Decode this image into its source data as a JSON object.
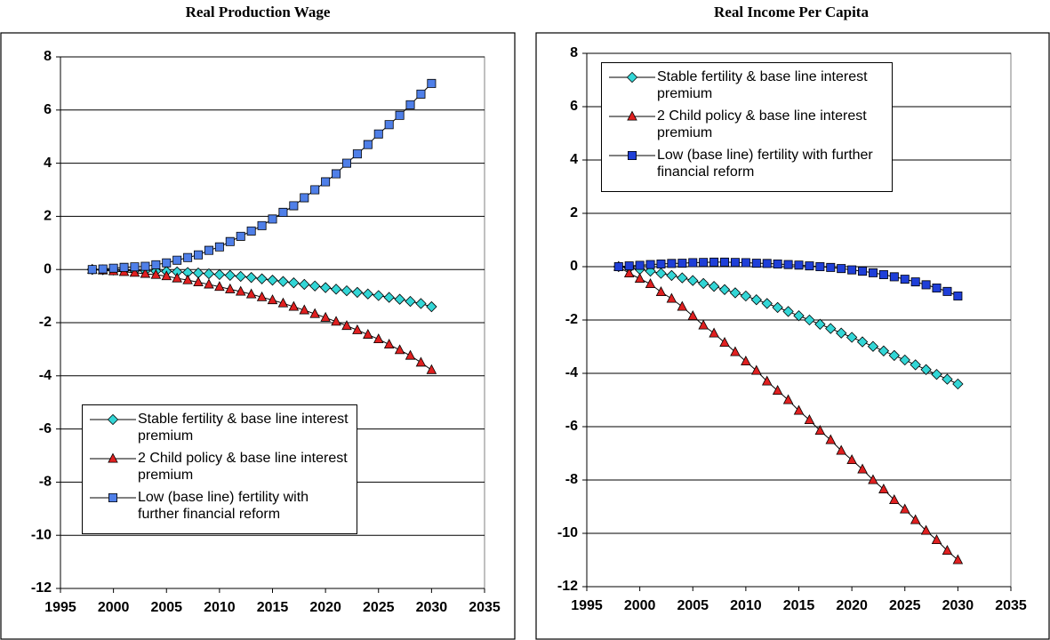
{
  "chart_data": [
    {
      "type": "line",
      "title": "Real Production Wage",
      "x": [
        1998,
        1999,
        2000,
        2001,
        2002,
        2003,
        2004,
        2005,
        2006,
        2007,
        2008,
        2009,
        2010,
        2011,
        2012,
        2013,
        2014,
        2015,
        2016,
        2017,
        2018,
        2019,
        2020,
        2021,
        2022,
        2023,
        2024,
        2025,
        2026,
        2027,
        2028,
        2029,
        2030
      ],
      "xlim": [
        1995,
        2035
      ],
      "xticks": [
        1995,
        2000,
        2005,
        2010,
        2015,
        2020,
        2025,
        2030,
        2035
      ],
      "ylim": [
        -12,
        8
      ],
      "yticks": [
        -12,
        -10,
        -8,
        -6,
        -4,
        -2,
        0,
        2,
        4,
        6,
        8
      ],
      "grid": true,
      "legend": "lower left",
      "series": [
        {
          "name": "Stable fertility & base line interest premium",
          "color": "#33D6D6",
          "marker": "diamond",
          "values": [
            0,
            -0.01,
            -0.02,
            -0.03,
            -0.04,
            -0.05,
            -0.06,
            -0.07,
            -0.09,
            -0.11,
            -0.13,
            -0.16,
            -0.19,
            -0.22,
            -0.26,
            -0.3,
            -0.35,
            -0.4,
            -0.45,
            -0.5,
            -0.56,
            -0.62,
            -0.68,
            -0.74,
            -0.8,
            -0.86,
            -0.92,
            -0.98,
            -1.05,
            -1.12,
            -1.2,
            -1.28,
            -1.4
          ]
        },
        {
          "name": "2 Child policy & base line interest premium",
          "color": "#E02020",
          "marker": "triangle",
          "values": [
            0,
            -0.03,
            -0.06,
            -0.09,
            -0.12,
            -0.16,
            -0.2,
            -0.25,
            -0.33,
            -0.4,
            -0.48,
            -0.56,
            -0.65,
            -0.74,
            -0.83,
            -0.93,
            -1.04,
            -1.15,
            -1.27,
            -1.4,
            -1.53,
            -1.67,
            -1.81,
            -1.96,
            -2.12,
            -2.28,
            -2.45,
            -2.62,
            -2.82,
            -3.03,
            -3.24,
            -3.5,
            -3.78
          ]
        },
        {
          "name": "Low  (base line) fertility with further financial reform",
          "color": "#4F7FE8",
          "marker": "square",
          "values": [
            0,
            0.02,
            0.05,
            0.08,
            0.1,
            0.12,
            0.18,
            0.25,
            0.35,
            0.45,
            0.55,
            0.72,
            0.85,
            1.05,
            1.25,
            1.45,
            1.65,
            1.9,
            2.15,
            2.4,
            2.7,
            3.0,
            3.3,
            3.6,
            4.0,
            4.35,
            4.7,
            5.1,
            5.45,
            5.8,
            6.2,
            6.6,
            7.0
          ]
        }
      ]
    },
    {
      "type": "line",
      "title": "Real Income Per Capita",
      "x": [
        1998,
        1999,
        2000,
        2001,
        2002,
        2003,
        2004,
        2005,
        2006,
        2007,
        2008,
        2009,
        2010,
        2011,
        2012,
        2013,
        2014,
        2015,
        2016,
        2017,
        2018,
        2019,
        2020,
        2021,
        2022,
        2023,
        2024,
        2025,
        2026,
        2027,
        2028,
        2029,
        2030
      ],
      "xlim": [
        1995,
        2035
      ],
      "xticks": [
        1995,
        2000,
        2005,
        2010,
        2015,
        2020,
        2025,
        2030,
        2035
      ],
      "ylim": [
        -12,
        8
      ],
      "yticks": [
        -12,
        -10,
        -8,
        -6,
        -4,
        -2,
        0,
        2,
        4,
        6,
        8
      ],
      "grid": true,
      "legend": "upper left",
      "series": [
        {
          "name": "Stable fertility & base line interest premium",
          "color": "#33D6D6",
          "marker": "diamond",
          "values": [
            0,
            -0.05,
            -0.1,
            -0.17,
            -0.25,
            -0.33,
            -0.42,
            -0.52,
            -0.63,
            -0.74,
            -0.86,
            -0.98,
            -1.1,
            -1.24,
            -1.38,
            -1.53,
            -1.68,
            -1.84,
            -2.0,
            -2.16,
            -2.32,
            -2.49,
            -2.65,
            -2.82,
            -2.99,
            -3.16,
            -3.33,
            -3.5,
            -3.68,
            -3.86,
            -4.04,
            -4.22,
            -4.4
          ]
        },
        {
          "name": "2 Child policy & base line interest premium",
          "color": "#E02020",
          "marker": "triangle",
          "values": [
            0,
            -0.25,
            -0.45,
            -0.65,
            -0.95,
            -1.2,
            -1.5,
            -1.85,
            -2.2,
            -2.5,
            -2.85,
            -3.2,
            -3.55,
            -3.9,
            -4.3,
            -4.65,
            -5.0,
            -5.4,
            -5.75,
            -6.15,
            -6.5,
            -6.9,
            -7.25,
            -7.6,
            -8.0,
            -8.35,
            -8.75,
            -9.1,
            -9.5,
            -9.9,
            -10.25,
            -10.65,
            -11.0
          ]
        },
        {
          "name": "Low  (base line) fertility with further financial reform",
          "color": "#1F3FD8",
          "marker": "square",
          "values": [
            0,
            0.03,
            0.05,
            0.08,
            0.1,
            0.12,
            0.13,
            0.15,
            0.16,
            0.17,
            0.17,
            0.16,
            0.15,
            0.13,
            0.12,
            0.1,
            0.08,
            0.06,
            0.03,
            0,
            -0.03,
            -0.07,
            -0.12,
            -0.17,
            -0.23,
            -0.3,
            -0.38,
            -0.47,
            -0.57,
            -0.68,
            -0.8,
            -0.93,
            -1.1
          ]
        }
      ]
    }
  ]
}
